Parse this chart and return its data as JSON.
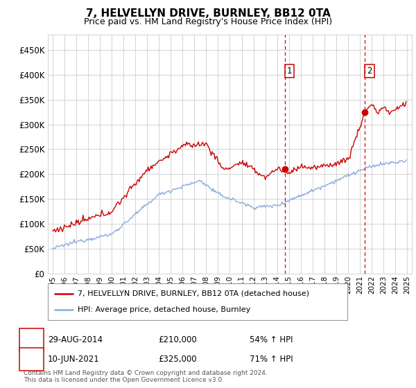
{
  "title": "7, HELVELLYN DRIVE, BURNLEY, BB12 0TA",
  "subtitle": "Price paid vs. HM Land Registry's House Price Index (HPI)",
  "hpi_label": "HPI: Average price, detached house, Burnley",
  "property_label": "7, HELVELLYN DRIVE, BURNLEY, BB12 0TA (detached house)",
  "legend_note": "Contains HM Land Registry data © Crown copyright and database right 2024.\nThis data is licensed under the Open Government Licence v3.0.",
  "annotation1_label": "1",
  "annotation1_date": "29-AUG-2014",
  "annotation1_price": "£210,000",
  "annotation1_hpi": "54% ↑ HPI",
  "annotation2_label": "2",
  "annotation2_date": "10-JUN-2021",
  "annotation2_price": "£325,000",
  "annotation2_hpi": "71% ↑ HPI",
  "vline1_x": 2014.66,
  "vline2_x": 2021.44,
  "marker1_x": 2014.66,
  "marker1_y": 210000,
  "marker2_x": 2021.44,
  "marker2_y": 325000,
  "property_color": "#cc0000",
  "hpi_color": "#88aadd",
  "vline_color": "#cc0000",
  "background_color": "#ffffff",
  "grid_color": "#cccccc",
  "ylim": [
    0,
    480000
  ],
  "yticks": [
    0,
    50000,
    100000,
    150000,
    200000,
    250000,
    300000,
    350000,
    400000,
    450000
  ],
  "xlim_start": 1994.6,
  "xlim_end": 2025.4,
  "xlabel_start": 1995,
  "xlabel_end": 2025
}
